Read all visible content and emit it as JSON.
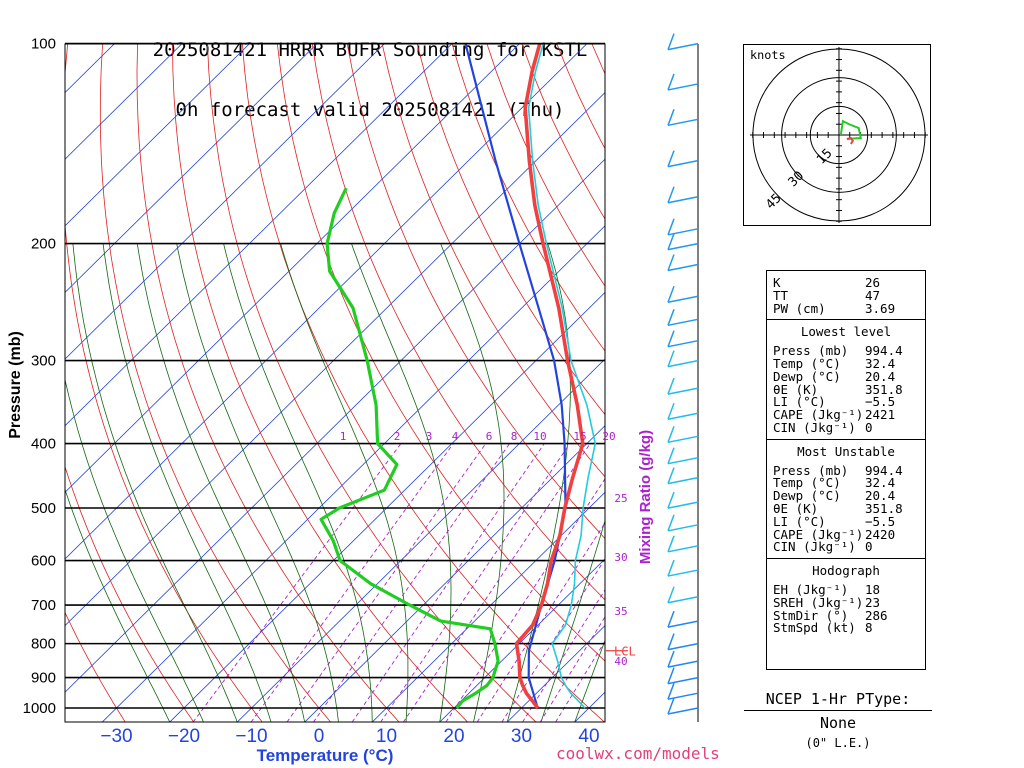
{
  "title": {
    "line1": "2025081421 HRRR BUFR Sounding for KSTL",
    "line2": "0h forecast valid 2025081421 (Thu)"
  },
  "chart_data": {
    "type": "skew-t",
    "ylabel": "Pressure (mb)",
    "xlabel": "Temperature (°C)",
    "mixing_ratio_label": "Mixing Ratio (g/kg)",
    "pressure_ticks": [
      "100",
      "200",
      "300",
      "400",
      "500",
      "600",
      "700",
      "800",
      "900",
      "1000"
    ],
    "temp_ticks": [
      "−30",
      "−20",
      "−10",
      "0",
      "10",
      "20",
      "30",
      "40"
    ],
    "mixing_ratio_values": [
      "1",
      "2",
      "3",
      "4",
      "6",
      "8",
      "10",
      "15",
      "20",
      "25",
      "30",
      "35",
      "40"
    ],
    "lcl_label": "LCL",
    "lcl_pressure_mb": 820,
    "temperature_profile": [
      [
        1000,
        32.4
      ],
      [
        975,
        30.5
      ],
      [
        950,
        28.5
      ],
      [
        925,
        26.8
      ],
      [
        900,
        25.2
      ],
      [
        850,
        22.6
      ],
      [
        800,
        19.6
      ],
      [
        750,
        19.2
      ],
      [
        700,
        17.5
      ],
      [
        650,
        15.2
      ],
      [
        600,
        12.3
      ],
      [
        550,
        9.8
      ],
      [
        500,
        6.4
      ],
      [
        450,
        3.0
      ],
      [
        400,
        -0.6
      ],
      [
        350,
        -7.2
      ],
      [
        300,
        -15.3
      ],
      [
        250,
        -24.5
      ],
      [
        200,
        -36.5
      ],
      [
        175,
        -43.5
      ],
      [
        150,
        -51
      ],
      [
        125,
        -59.5
      ],
      [
        110,
        -64
      ],
      [
        100,
        -67
      ]
    ],
    "dewpoint_profile": [
      [
        1000,
        20.4
      ],
      [
        975,
        20.2
      ],
      [
        950,
        21
      ],
      [
        925,
        21.5
      ],
      [
        900,
        21.2
      ],
      [
        850,
        19.5
      ],
      [
        800,
        16.4
      ],
      [
        760,
        13.5
      ],
      [
        740,
        5
      ],
      [
        700,
        -2
      ],
      [
        650,
        -11
      ],
      [
        600,
        -19
      ],
      [
        560,
        -23
      ],
      [
        520,
        -28
      ],
      [
        500,
        -27
      ],
      [
        470,
        -23
      ],
      [
        430,
        -25
      ],
      [
        400,
        -31
      ],
      [
        350,
        -37
      ],
      [
        300,
        -45
      ],
      [
        250,
        -55
      ],
      [
        220,
        -64
      ],
      [
        200,
        -68.5
      ],
      [
        180,
        -72
      ],
      [
        165,
        -74
      ]
    ],
    "parcel_profile": [
      [
        1000,
        32.4
      ],
      [
        900,
        26.5
      ],
      [
        820,
        22.5
      ],
      [
        700,
        17.5
      ],
      [
        600,
        12.8
      ],
      [
        500,
        6.5
      ],
      [
        400,
        -3.3
      ],
      [
        350,
        -9.5
      ],
      [
        300,
        -17.3
      ],
      [
        250,
        -27.5
      ],
      [
        200,
        -40
      ],
      [
        150,
        -56
      ],
      [
        100,
        -78
      ]
    ],
    "wind_barbs": [
      {
        "p": 100
      },
      {
        "p": 115
      },
      {
        "p": 130
      },
      {
        "p": 150
      },
      {
        "p": 170
      },
      {
        "p": 190
      },
      {
        "p": 200
      },
      {
        "p": 215
      },
      {
        "p": 240
      },
      {
        "p": 260
      },
      {
        "p": 280
      },
      {
        "p": 300
      },
      {
        "p": 330
      },
      {
        "p": 360
      },
      {
        "p": 390
      },
      {
        "p": 420
      },
      {
        "p": 450
      },
      {
        "p": 490
      },
      {
        "p": 530
      },
      {
        "p": 570
      },
      {
        "p": 620
      },
      {
        "p": 680
      },
      {
        "p": 740
      },
      {
        "p": 800
      },
      {
        "p": 850
      },
      {
        "p": 900
      },
      {
        "p": 950
      },
      {
        "p": 1000
      }
    ]
  },
  "hodograph": {
    "units_label": "knots",
    "ring_labels": [
      "15",
      "30",
      "45"
    ]
  },
  "indices": {
    "top": [
      [
        "K",
        "26"
      ],
      [
        "TT",
        "47"
      ],
      [
        "PW (cm)",
        "3.69"
      ]
    ],
    "lowest_level": {
      "header": "Lowest level",
      "rows": [
        [
          "Press (mb)",
          "994.4"
        ],
        [
          "Temp (°C)",
          "32.4"
        ],
        [
          "Dewp (°C)",
          "20.4"
        ],
        [
          "θE (K)",
          "351.8"
        ],
        [
          "LI (°C)",
          "−5.5"
        ],
        [
          "CAPE (Jkg⁻¹)",
          "2421"
        ],
        [
          "CIN (Jkg⁻¹)",
          "0"
        ]
      ]
    },
    "most_unstable": {
      "header": "Most Unstable",
      "rows": [
        [
          "Press (mb)",
          "994.4"
        ],
        [
          "Temp (°C)",
          "32.4"
        ],
        [
          "Dewp (°C)",
          "20.4"
        ],
        [
          "θE (K)",
          "351.8"
        ],
        [
          "LI (°C)",
          "−5.5"
        ],
        [
          "CAPE (Jkg⁻¹)",
          "2420"
        ],
        [
          "CIN (Jkg⁻¹)",
          "0"
        ]
      ]
    },
    "hodograph": {
      "header": "Hodograph",
      "rows": [
        [
          "EH (Jkg⁻¹)",
          "18"
        ],
        [
          "SREH (Jkg⁻¹)",
          "23"
        ],
        [
          "StmDir (°)",
          "286"
        ],
        [
          "StmSpd (kt)",
          "8"
        ]
      ]
    }
  },
  "ptype": {
    "label": "NCEP 1-Hr PType:",
    "value": "None",
    "note": "(0\" L.E.)"
  },
  "credit": "coolwx.com/models",
  "colors": {
    "temperature": "#f04040",
    "dewpoint": "#22cc22",
    "parcel": "#2244dd",
    "virtual_temp": "#22ccdd",
    "isotherm": "#2244dd",
    "dry_adiabat": "#dd2222",
    "moist_adiabat": "#116611",
    "mixing_ratio": "#aa22cc",
    "barb": "#2288ee"
  }
}
